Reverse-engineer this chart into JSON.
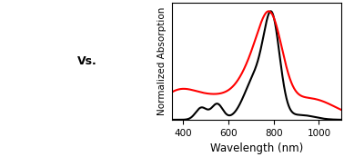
{
  "xlim": [
    350,
    1100
  ],
  "ylim": [
    0,
    1.08
  ],
  "xlabel": "Wavelength (nm)",
  "ylabel": "Normalized Absorption",
  "xlabel_fontsize": 8.5,
  "ylabel_fontsize": 7.5,
  "tick_fontsize": 7.5,
  "xticks": [
    400,
    600,
    800,
    1000
  ],
  "background_color": "#ffffff",
  "line_black_color": "#000000",
  "line_red_color": "#ff0000",
  "linewidth": 1.5,
  "figsize": [
    3.78,
    1.73
  ],
  "dpi": 100
}
